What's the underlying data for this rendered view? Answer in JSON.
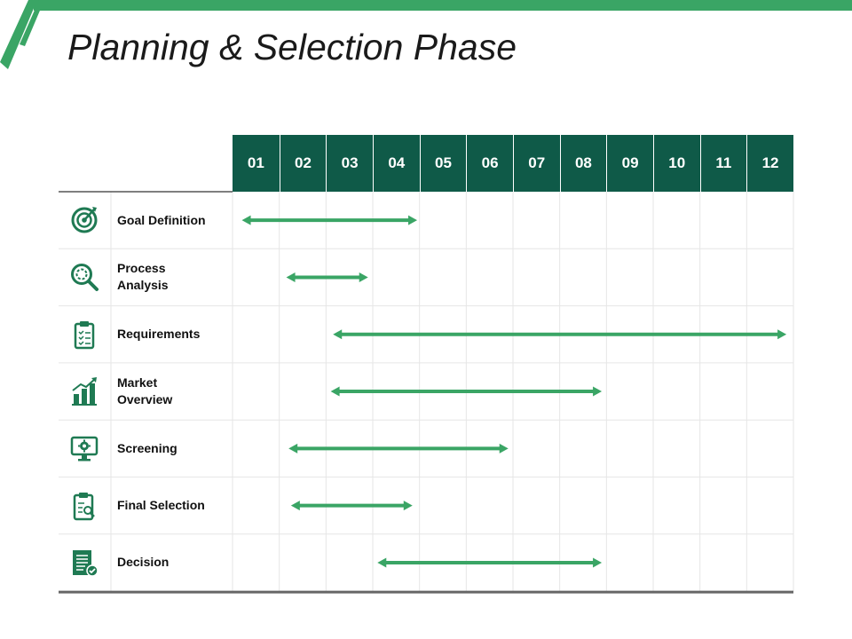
{
  "title": "Planning & Selection Phase",
  "columns": [
    "01",
    "02",
    "03",
    "04",
    "05",
    "06",
    "07",
    "08",
    "09",
    "10",
    "11",
    "12"
  ],
  "colors": {
    "accent": "#3aa565",
    "header_bg": "#0f5a48",
    "grid": "#e6e6e6"
  },
  "rows": [
    {
      "label": "Goal Definition",
      "icon": "target-icon",
      "start": 1.2,
      "end": 4.95
    },
    {
      "label": "Process\nAnalysis",
      "icon": "magnifier-icon",
      "start": 2.15,
      "end": 3.9
    },
    {
      "label": "Requirements",
      "icon": "clipboard-icon",
      "start": 3.15,
      "end": 12.85
    },
    {
      "label": "Market\nOverview",
      "icon": "chart-icon",
      "start": 3.1,
      "end": 8.9
    },
    {
      "label": "Screening",
      "icon": "monitor-gear-icon",
      "start": 2.2,
      "end": 6.9
    },
    {
      "label": "Final Selection",
      "icon": "clipboard-search-icon",
      "start": 2.25,
      "end": 4.85
    },
    {
      "label": "Decision",
      "icon": "document-check-icon",
      "start": 4.1,
      "end": 8.9
    }
  ]
}
